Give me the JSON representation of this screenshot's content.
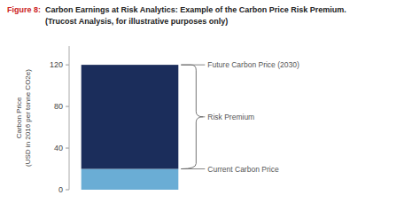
{
  "chart_data": {
    "type": "bar",
    "stacked": true,
    "figure_label": "Figure 8:",
    "title": "Carbon Earnings at Risk Analytics: Example of the Carbon Price Risk Premium.",
    "subtitle": "(Trucost Analysis, for illustrative purposes only)",
    "ylabel": "Carbon Price\n(USD in 2016 per tonne CO2e)",
    "categories": [
      null
    ],
    "series": [
      {
        "name": "Current Carbon Price",
        "color": "#6aadd5",
        "values": [
          20
        ]
      },
      {
        "name": "Risk Premium",
        "color": "#1b2d5b",
        "values": [
          100
        ]
      }
    ],
    "annotation": "Future Carbon Price (2030)",
    "ylim": [
      0,
      138
    ],
    "yticks": [
      0,
      40,
      80,
      120
    ],
    "grid": false
  }
}
